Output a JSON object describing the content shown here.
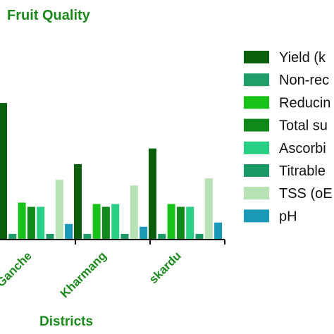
{
  "chart_data": {
    "type": "bar",
    "title": "Fruit Quality",
    "xlabel": "Districts",
    "ylabel": "",
    "categories": [
      "Ganche",
      "Kharmang",
      "skardu"
    ],
    "ylim": [
      0,
      10
    ],
    "legend_position": "right",
    "series": [
      {
        "name": "Yield (k",
        "color": "#0b5e0b",
        "values": [
          9.6,
          5.3,
          6.4
        ]
      },
      {
        "name": "Non-rec",
        "color": "#1f9e6a",
        "values": [
          0.4,
          0.4,
          0.4
        ]
      },
      {
        "name": "Reducin",
        "color": "#19c219",
        "values": [
          2.6,
          2.5,
          2.5
        ]
      },
      {
        "name": "Total su",
        "color": "#10881a",
        "values": [
          2.3,
          2.3,
          2.3
        ]
      },
      {
        "name": "Ascorbi",
        "color": "#2acf86",
        "values": [
          2.3,
          2.5,
          2.3
        ]
      },
      {
        "name": "Titrable",
        "color": "#1a9966",
        "values": [
          0.4,
          0.4,
          0.4
        ]
      },
      {
        "name": "TSS (oE",
        "color": "#b6e2b6",
        "values": [
          4.2,
          3.8,
          4.3
        ]
      },
      {
        "name": "pH",
        "color": "#1b9ab8",
        "values": [
          1.1,
          0.9,
          1.2
        ]
      }
    ]
  }
}
